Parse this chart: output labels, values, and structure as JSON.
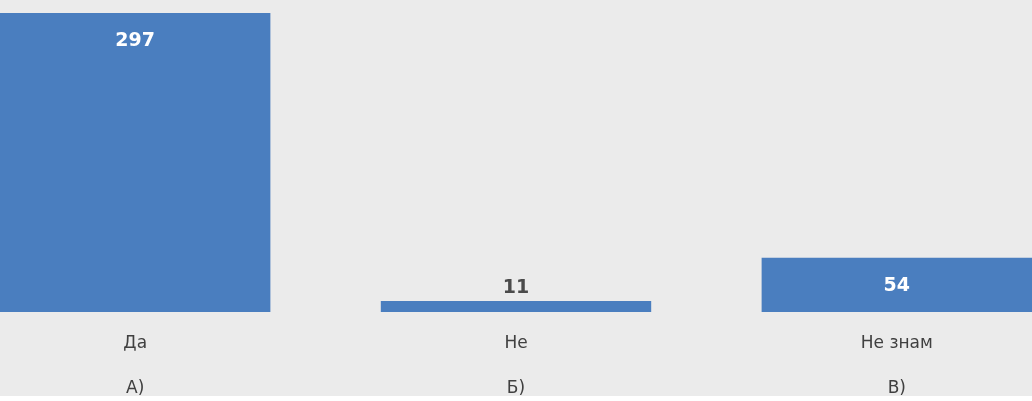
{
  "chart_data": {
    "type": "bar",
    "categories": [
      "Да",
      "Не",
      "Не знам"
    ],
    "values": [
      297,
      11,
      54
    ],
    "color": "#4a7ebf",
    "data_labels": true,
    "grid": false,
    "annotations": [
      "А)",
      "Б)",
      "В)"
    ]
  }
}
